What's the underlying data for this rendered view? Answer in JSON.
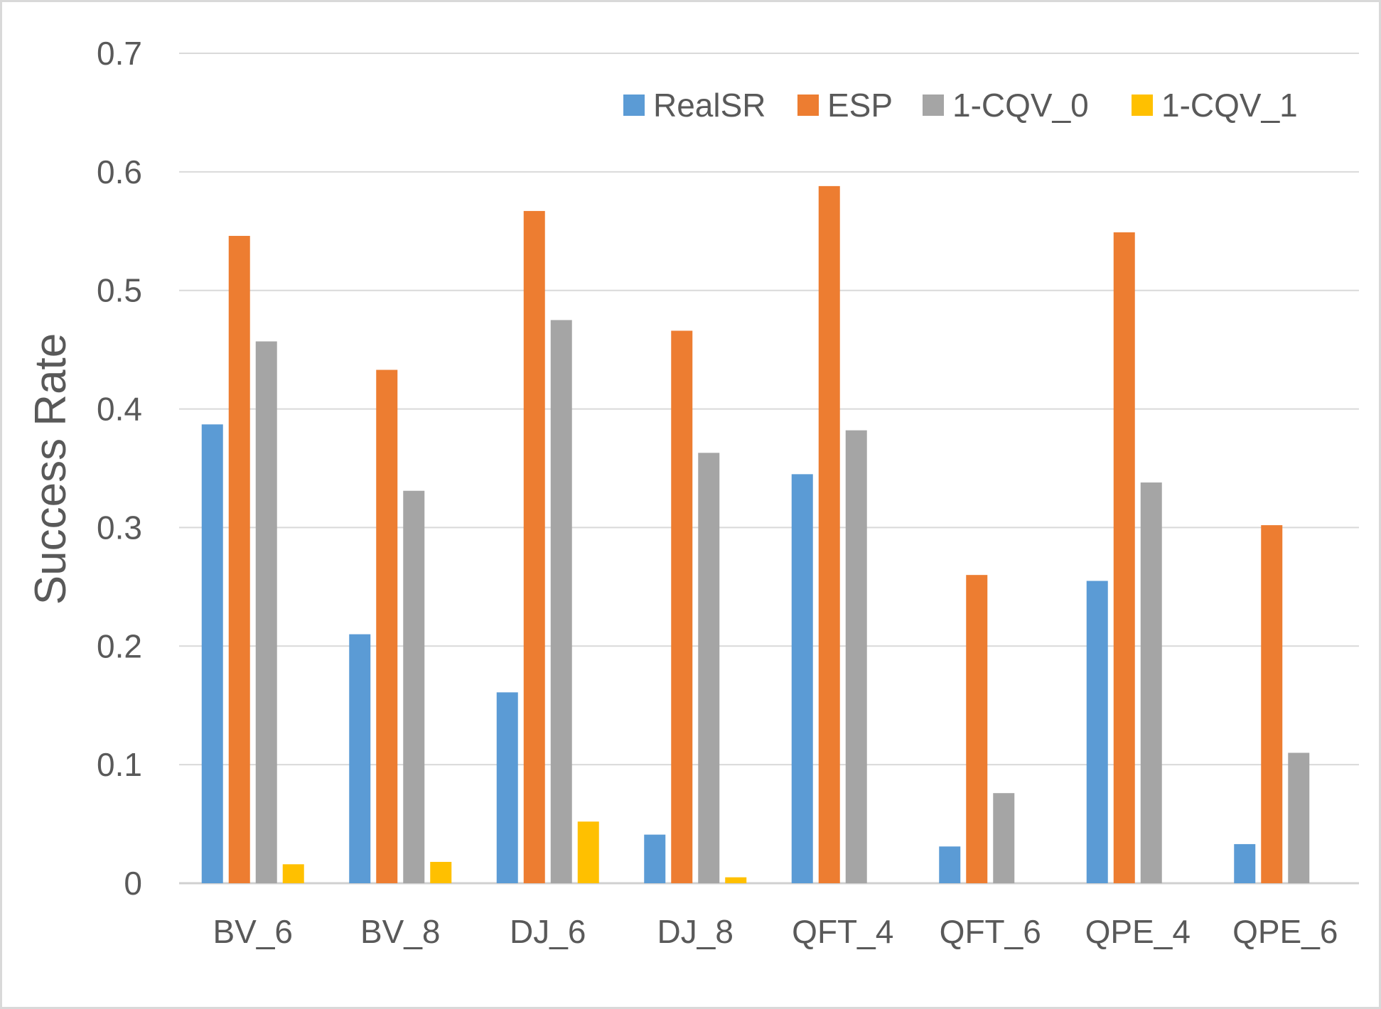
{
  "chart_data": {
    "type": "bar",
    "title": "",
    "xlabel": "",
    "ylabel": "Success Rate",
    "ylim": [
      0,
      0.7
    ],
    "yticks": [
      "0",
      "0.1",
      "0.2",
      "0.3",
      "0.4",
      "0.5",
      "0.6",
      "0.7"
    ],
    "grid": true,
    "legend_position": "top-right",
    "categories": [
      "BV_6",
      "BV_8",
      "DJ_6",
      "DJ_8",
      "QFT_4",
      "QFT_6",
      "QPE_4",
      "QPE_6"
    ],
    "series": [
      {
        "name": "RealSR",
        "color": "#5B9BD5",
        "values": [
          0.387,
          0.21,
          0.161,
          0.041,
          0.345,
          0.031,
          0.255,
          0.033
        ]
      },
      {
        "name": "ESP",
        "color": "#ED7D31",
        "values": [
          0.546,
          0.433,
          0.567,
          0.466,
          0.588,
          0.26,
          0.549,
          0.302
        ]
      },
      {
        "name": "1-CQV_0",
        "color": "#A5A5A5",
        "values": [
          0.457,
          0.331,
          0.475,
          0.363,
          0.382,
          0.076,
          0.338,
          0.11
        ]
      },
      {
        "name": "1-CQV_1",
        "color": "#FFC000",
        "values": [
          0.016,
          0.018,
          0.052,
          0.005,
          0,
          0,
          0,
          0
        ]
      }
    ]
  }
}
